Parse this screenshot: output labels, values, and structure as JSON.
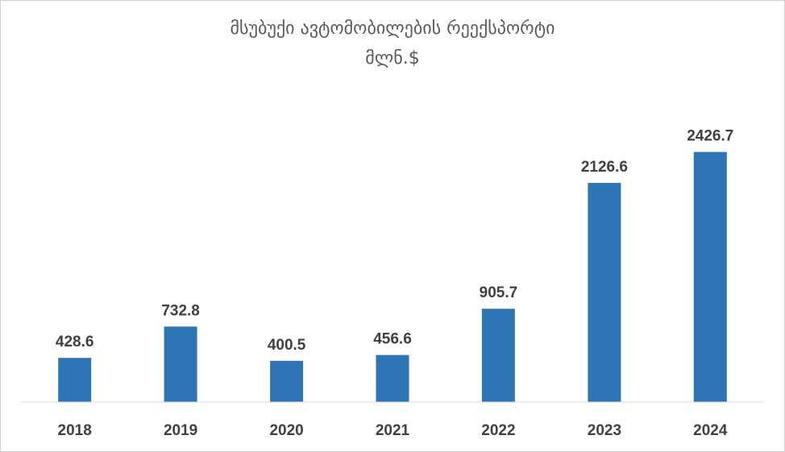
{
  "chart_data": {
    "type": "bar",
    "title": "მსუბუქი ავტომობილების რეექსპორტი",
    "subtitle": "მლნ.$",
    "categories": [
      "2018",
      "2019",
      "2020",
      "2021",
      "2022",
      "2023",
      "2024"
    ],
    "values": [
      428.6,
      732.8,
      400.5,
      456.6,
      905.7,
      2126.6,
      2426.7
    ],
    "data_labels": [
      "428.6",
      "732.8",
      "400.5",
      "456.6",
      "905.7",
      "2126.6",
      "2426.7"
    ],
    "xlabel": "",
    "ylabel": "",
    "ylim": [
      0,
      2600
    ],
    "grid": false,
    "legend": "none",
    "bar_color": "#2E75B6"
  }
}
